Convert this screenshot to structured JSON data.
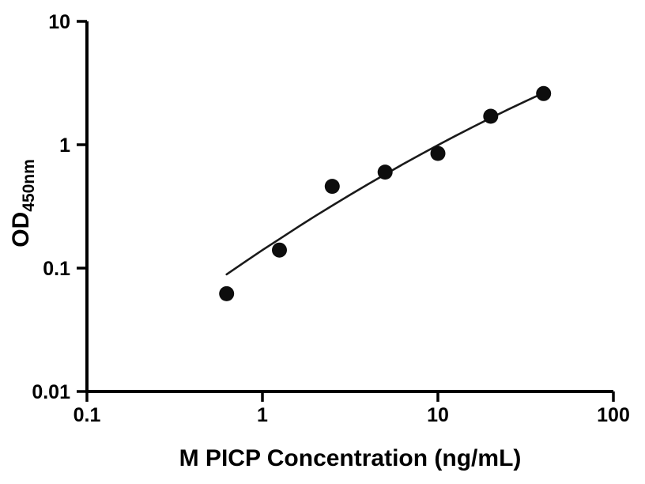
{
  "figure": {
    "background": "#ffffff",
    "axis_color": "#000000",
    "point_color": "#0d0d0d",
    "curve_color": "#1a1a1a"
  },
  "chart_data": {
    "type": "scatter",
    "title": "",
    "xlabel": "M PICP Concentration (ng/mL)",
    "ylabel_main": "OD",
    "ylabel_sub": "450nm",
    "x_scale": "log",
    "y_scale": "log",
    "xlim": [
      0.1,
      100
    ],
    "ylim": [
      0.01,
      10
    ],
    "x_ticks": [
      0.1,
      1,
      10,
      100
    ],
    "x_tick_labels": [
      "0.1",
      "1",
      "10",
      "100"
    ],
    "y_ticks": [
      0.01,
      0.1,
      1,
      10
    ],
    "y_tick_labels": [
      "0.01",
      "0.1",
      "1",
      "10"
    ],
    "grid": false,
    "legend": "none",
    "series": [
      {
        "name": "standard-points",
        "type": "scatter",
        "marker": "filled-circle",
        "x": [
          0.625,
          1.25,
          2.5,
          5,
          10,
          20,
          40
        ],
        "y": [
          0.062,
          0.14,
          0.46,
          0.6,
          0.85,
          1.7,
          2.6
        ]
      },
      {
        "name": "fit-curve",
        "type": "line",
        "x": [
          0.625,
          0.8,
          1,
          1.25,
          1.6,
          2,
          2.5,
          3.2,
          4,
          5,
          6.3,
          8,
          10,
          12.5,
          16,
          20,
          25,
          32,
          40
        ],
        "y": [
          0.089,
          0.113,
          0.14,
          0.172,
          0.216,
          0.264,
          0.321,
          0.397,
          0.479,
          0.575,
          0.693,
          0.836,
          0.992,
          1.172,
          1.405,
          1.646,
          1.922,
          2.271,
          2.63
        ]
      }
    ]
  }
}
